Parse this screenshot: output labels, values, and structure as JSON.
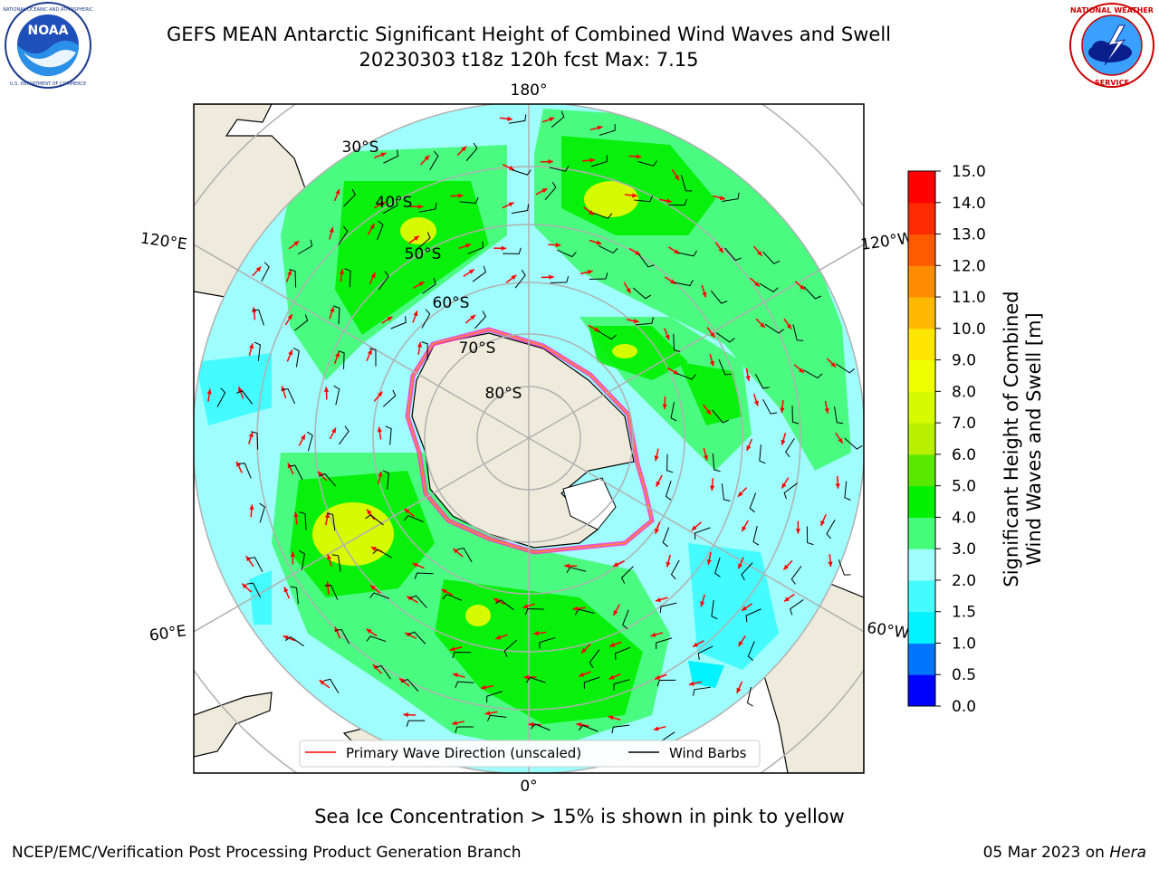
{
  "header": {
    "title_line1": "GEFS MEAN Antarctic Significant Height of Combined Wind Waves and Swell",
    "title_line2": "20230303 t18z 120h fcst   Max: 7.15"
  },
  "logos": {
    "left": {
      "name": "noaa-logo",
      "text": "NOAA",
      "ring_text": "NATIONAL OCEANIC AND ATMOSPHERIC ADMINISTRATION · U.S. DEPARTMENT OF COMMERCE"
    },
    "right": {
      "name": "nws-logo",
      "ring_text": "NATIONAL WEATHER SERVICE"
    }
  },
  "map": {
    "projection": "south-polar-stereographic",
    "longitude_labels": {
      "top": "180°",
      "bottom": "0°",
      "upper_left": "120°E",
      "upper_right": "120°W",
      "lower_left": "60°E",
      "lower_right": "60°W"
    },
    "latitude_labels": [
      "30°S",
      "40°S",
      "50°S",
      "60°S",
      "70°S",
      "80°S"
    ],
    "legend": {
      "wave_direction": "Primary Wave Direction (unscaled)",
      "wind_barbs": "Wind Barbs"
    },
    "colors": {
      "land": "#efebdc",
      "ocean_low": "#9bfbfb",
      "ice_edge": "#ff33cc",
      "arrow": "#ff0000"
    }
  },
  "colorbar": {
    "label_line1": "Significant Height of Combined",
    "label_line2": "Wind Waves and Swell [m]",
    "ticks": [
      "0.0",
      "0.5",
      "1.0",
      "1.5",
      "2.0",
      "3.0",
      "4.0",
      "5.0",
      "6.0",
      "7.0",
      "8.0",
      "9.0",
      "10.0",
      "11.0",
      "12.0",
      "13.0",
      "14.0",
      "15.0"
    ],
    "colors": [
      "#0000ff",
      "#0073ff",
      "#00f3ff",
      "#44fbff",
      "#9ffdfd",
      "#46fb7a",
      "#00f000",
      "#5ae800",
      "#b8f000",
      "#d6fa00",
      "#f0ff00",
      "#ffe600",
      "#ffb800",
      "#ff8c00",
      "#ff5a00",
      "#ff2b00",
      "#ff0000"
    ]
  },
  "caption": "Sea Ice Concentration > 15% is shown in pink to yellow",
  "footer": {
    "left": "NCEP/EMC/Verification Post Processing Product Generation Branch",
    "right_date": "05 Mar 2023 on",
    "right_host": "Hera"
  }
}
